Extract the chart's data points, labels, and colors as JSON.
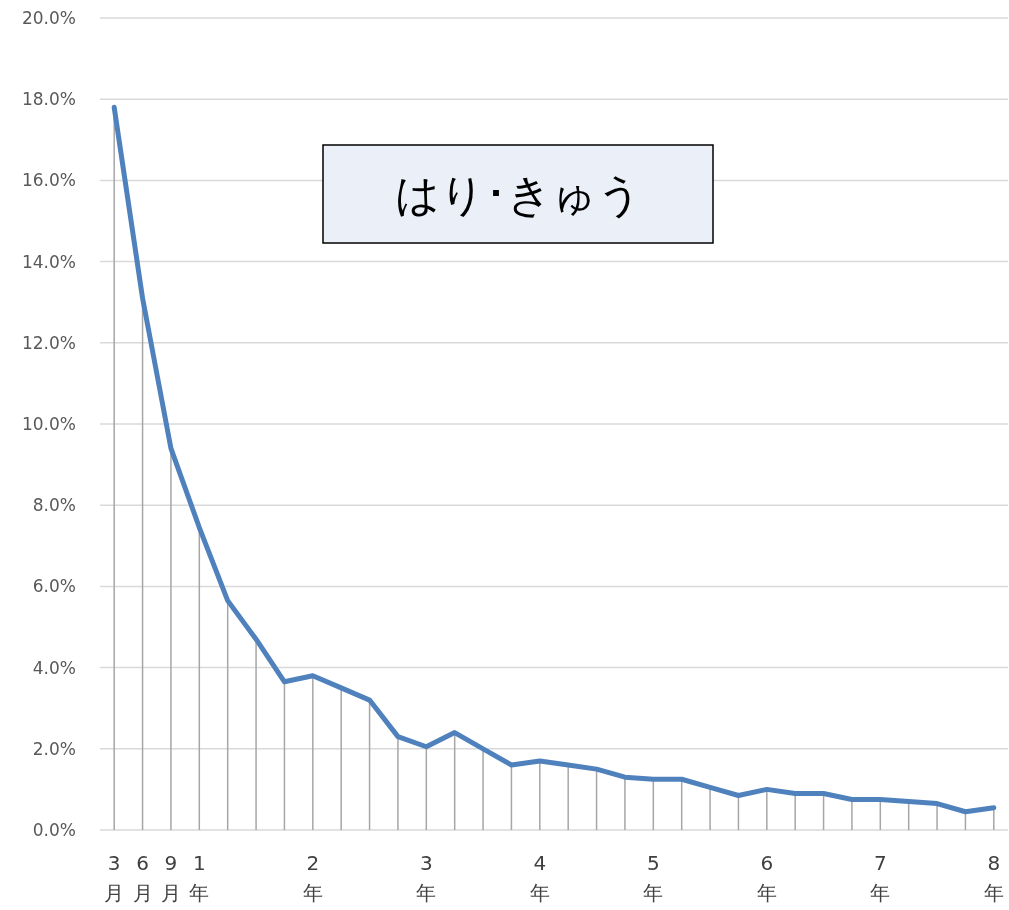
{
  "chart_data": {
    "type": "line",
    "title": "はり･きゅう",
    "categories": [
      "3月",
      "6月",
      "9月",
      "1年",
      null,
      null,
      null,
      "2年",
      null,
      null,
      null,
      "3年",
      null,
      null,
      null,
      "4年",
      null,
      null,
      null,
      "5年",
      null,
      null,
      null,
      "6年",
      null,
      null,
      null,
      "7年",
      null,
      null,
      null,
      "8年"
    ],
    "series": [
      {
        "color": "#4f81bd",
        "values": [
          17.8,
          13.1,
          9.4,
          7.45,
          5.65,
          4.7,
          3.65,
          3.8,
          3.5,
          3.2,
          2.3,
          2.05,
          2.4,
          2.0,
          1.6,
          1.7,
          1.6,
          1.5,
          1.3,
          1.25,
          1.25,
          1.05,
          0.85,
          1.0,
          0.9,
          0.9,
          0.75,
          0.75,
          0.7,
          0.65,
          0.45,
          0.55
        ],
        "errors": [
          [
            0,
            17.8
          ],
          [
            0,
            13.1
          ],
          [
            0,
            9.4
          ],
          [
            0,
            7.45
          ],
          [
            0,
            5.65
          ],
          [
            0,
            4.7
          ],
          [
            0,
            3.65
          ],
          [
            0,
            3.8
          ],
          [
            0,
            3.5
          ],
          [
            0,
            3.2
          ],
          [
            0,
            2.3
          ],
          [
            0,
            2.05
          ],
          [
            0,
            2.4
          ],
          [
            0,
            2.0
          ],
          [
            0,
            1.6
          ],
          [
            0,
            1.7
          ],
          [
            0,
            1.6
          ],
          [
            0,
            1.5
          ],
          [
            0,
            1.3
          ],
          [
            0,
            1.25
          ],
          [
            0,
            1.25
          ],
          [
            0,
            1.05
          ],
          [
            0,
            0.85
          ],
          [
            0,
            1.0
          ],
          [
            0,
            0.9
          ],
          [
            0,
            0.9
          ],
          [
            0,
            0.75
          ],
          [
            0,
            0.75
          ],
          [
            0,
            0.7
          ],
          [
            0,
            0.65
          ],
          [
            0,
            0.45
          ],
          [
            0,
            0.55
          ]
        ]
      }
    ],
    "ylim": [
      0,
      20
    ],
    "yticks": [
      {
        "value": 0,
        "label": "0.0%"
      },
      {
        "value": 2,
        "label": "2.0%"
      },
      {
        "value": 4,
        "label": "4.0%"
      },
      {
        "value": 6,
        "label": "6.0%"
      },
      {
        "value": 8,
        "label": "8.0%"
      },
      {
        "value": 10,
        "label": "10.0%"
      },
      {
        "value": 12,
        "label": "12.0%"
      },
      {
        "value": 14,
        "label": "14.0%"
      },
      {
        "value": 16,
        "label": "16.0%"
      },
      {
        "value": 18,
        "label": "18.0%"
      },
      {
        "value": 20,
        "label": "20.0%"
      }
    ],
    "grid": "y"
  }
}
